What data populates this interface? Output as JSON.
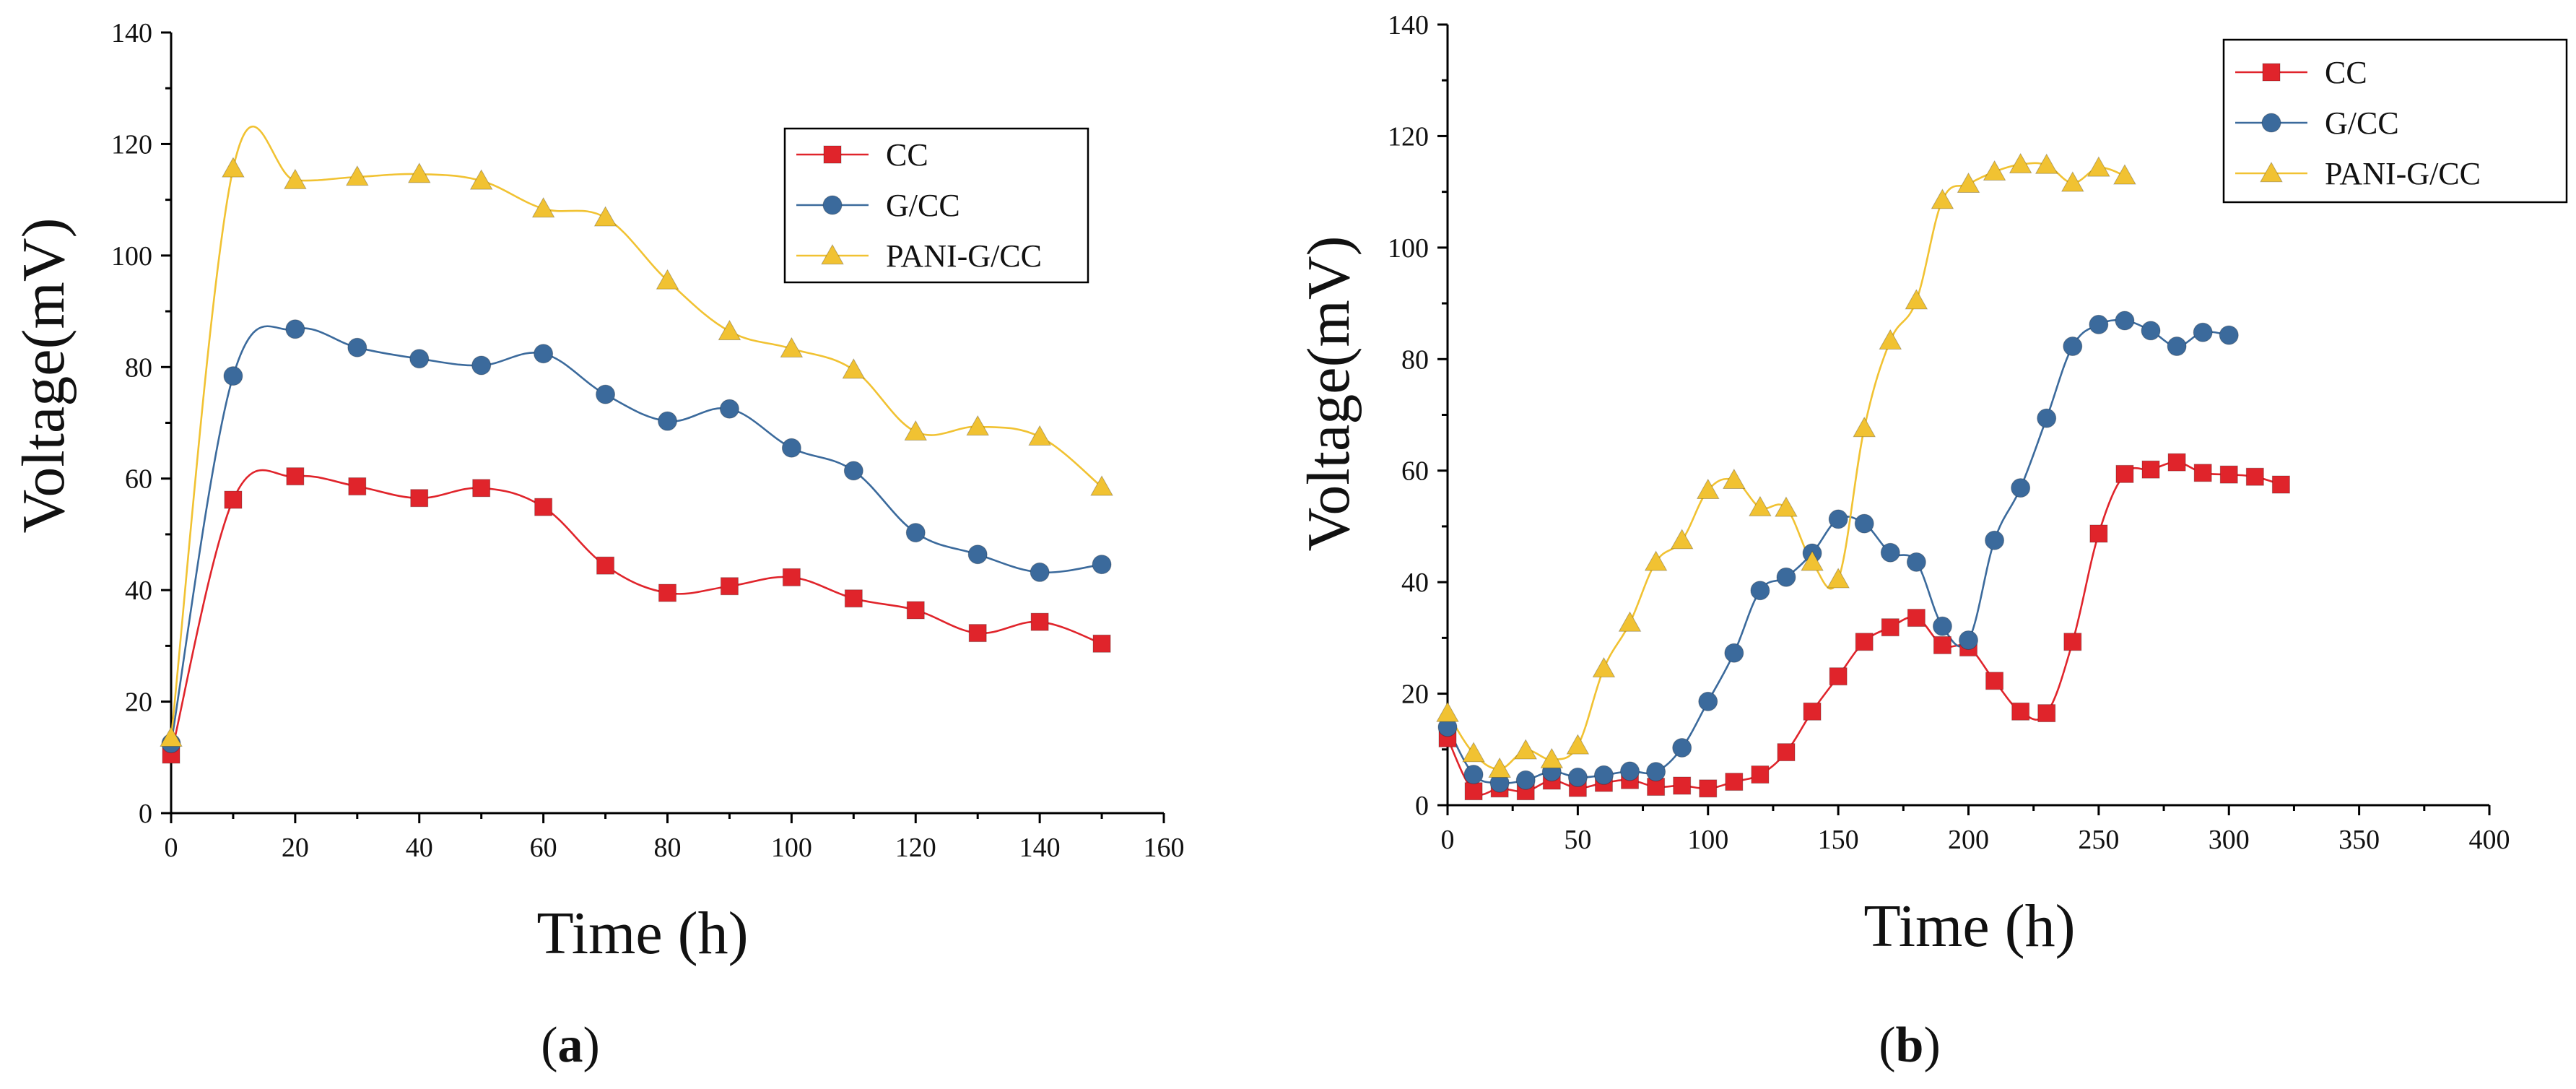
{
  "chart_data": [
    {
      "type": "line",
      "panel_label": {
        "open": "(",
        "letter": "a",
        "close": ")"
      },
      "xlabel": "Time (h)",
      "ylabel": "Voltage(mV)",
      "xlim": [
        0,
        160
      ],
      "ylim": [
        0,
        140
      ],
      "xticks": [
        "0",
        "20",
        "40",
        "60",
        "80",
        "100",
        "120",
        "140",
        "160"
      ],
      "yticks": [
        "0",
        "20",
        "40",
        "60",
        "80",
        "100",
        "120",
        "140"
      ],
      "grid": false,
      "legend_position": "top-right",
      "x": [
        0,
        10,
        20,
        30,
        40,
        50,
        60,
        70,
        80,
        90,
        100,
        110,
        120,
        130,
        140,
        150
      ],
      "series": [
        {
          "name": "CC",
          "color": "#e0242b",
          "marker": "square",
          "values": [
            10.5,
            56.2,
            60.4,
            58.6,
            56.5,
            58.3,
            54.9,
            44.4,
            39.5,
            40.7,
            42.3,
            38.5,
            36.4,
            32.3,
            34.3,
            30.4
          ]
        },
        {
          "name": "G/CC",
          "color": "#3b6a9c",
          "marker": "circle",
          "values": [
            12.5,
            78.4,
            86.8,
            83.5,
            81.5,
            80.3,
            82.4,
            75.1,
            70.3,
            72.5,
            65.5,
            61.4,
            50.3,
            46.4,
            43.2,
            44.6
          ]
        },
        {
          "name": "PANI-G/CC",
          "color": "#f1c232",
          "marker": "triangle",
          "values": [
            13.5,
            115.6,
            113.5,
            114.1,
            114.6,
            113.4,
            108.4,
            106.8,
            95.5,
            86.4,
            83.3,
            79.5,
            68.4,
            69.3,
            67.5,
            58.5
          ]
        }
      ]
    },
    {
      "type": "line",
      "panel_label": {
        "open": "(",
        "letter": "b",
        "close": ")"
      },
      "xlabel": "Time (h)",
      "ylabel": "Voltage(mV)",
      "xlim": [
        0,
        400
      ],
      "ylim": [
        0,
        140
      ],
      "xticks": [
        "0",
        "50",
        "100",
        "150",
        "200",
        "250",
        "300",
        "350",
        "400"
      ],
      "yticks": [
        "0",
        "20",
        "40",
        "60",
        "80",
        "100",
        "120",
        "140"
      ],
      "grid": false,
      "legend_position": "top-right",
      "series": [
        {
          "name": "CC",
          "color": "#e0242b",
          "marker": "square",
          "x": [
            0,
            10,
            20,
            30,
            40,
            50,
            60,
            70,
            80,
            90,
            100,
            110,
            120,
            130,
            140,
            150,
            160,
            170,
            180,
            190,
            200,
            210,
            220,
            230,
            240,
            250,
            260,
            270,
            280,
            290,
            300,
            310,
            320
          ],
          "values": [
            12,
            2.5,
            3.0,
            2.5,
            4.4,
            3.1,
            4.0,
            4.5,
            3.3,
            3.5,
            3.0,
            4.2,
            5.5,
            9.5,
            16.8,
            23.1,
            29.3,
            31.9,
            33.6,
            28.7,
            28.3,
            22.3,
            16.8,
            16.5,
            29.3,
            48.7,
            59.4,
            60.2,
            61.5,
            59.6,
            59.3,
            58.9,
            57.5
          ]
        },
        {
          "name": "G/CC",
          "color": "#3b6a9c",
          "marker": "circle",
          "x": [
            0,
            10,
            20,
            30,
            40,
            50,
            60,
            70,
            80,
            90,
            100,
            110,
            120,
            130,
            140,
            150,
            160,
            170,
            180,
            190,
            200,
            210,
            220,
            230,
            240,
            250,
            260,
            270,
            280,
            290,
            300
          ],
          "values": [
            14,
            5.5,
            4.0,
            4.5,
            6.0,
            5.0,
            5.4,
            6.1,
            6.0,
            10.3,
            18.6,
            27.3,
            38.5,
            40.9,
            45.2,
            51.3,
            50.5,
            45.3,
            43.6,
            32.1,
            29.6,
            47.5,
            56.9,
            69.4,
            82.3,
            86.2,
            86.9,
            85.1,
            82.3,
            84.8,
            84.3
          ]
        },
        {
          "name": "PANI-G/CC",
          "color": "#f1c232",
          "marker": "triangle",
          "x": [
            0,
            10,
            20,
            30,
            40,
            50,
            60,
            70,
            80,
            90,
            100,
            110,
            120,
            130,
            140,
            150,
            160,
            170,
            180,
            190,
            200,
            210,
            220,
            230,
            240,
            250,
            260
          ],
          "values": [
            16.5,
            9.3,
            6.5,
            9.8,
            8.2,
            10.7,
            24.5,
            32.7,
            43.6,
            47.5,
            56.5,
            58.3,
            53.4,
            53.3,
            43.6,
            40.5,
            67.6,
            83.3,
            90.5,
            108.5,
            111.4,
            113.6,
            114.9,
            114.8,
            111.6,
            114.3,
            112.9
          ]
        }
      ]
    }
  ]
}
